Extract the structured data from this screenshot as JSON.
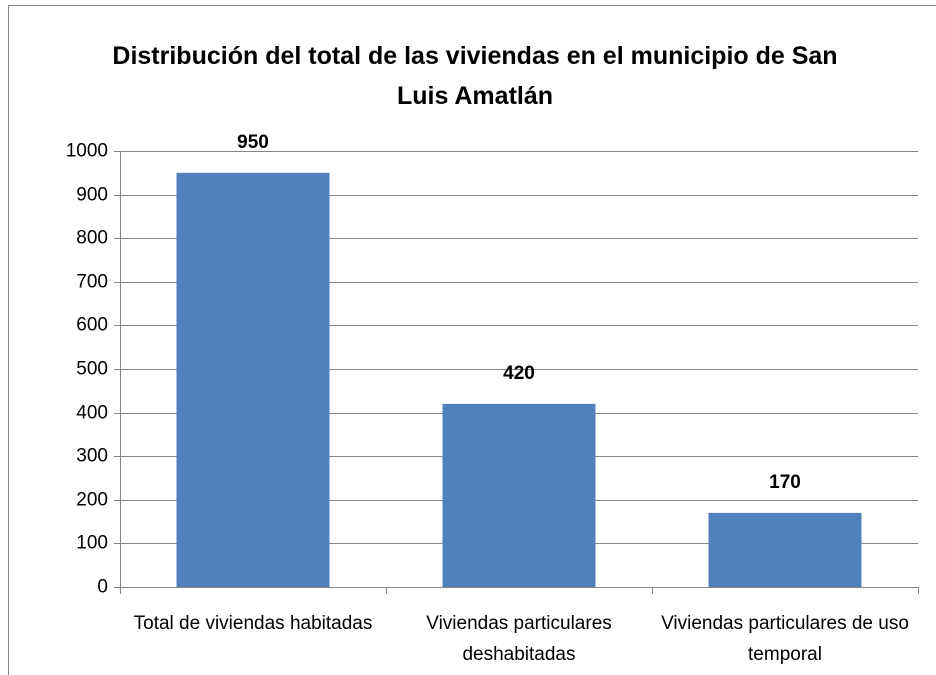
{
  "chart_data": {
    "type": "bar",
    "title": "Distribución del total de las viviendas en el municipio de San Luis Amatlán",
    "categories": [
      "Total de viviendas habitadas",
      "Viviendas particulares deshabitadas",
      "Viviendas particulares de uso temporal"
    ],
    "values": [
      950,
      420,
      170
    ],
    "color": "#4f81bd",
    "ylim": [
      0,
      1000
    ],
    "yticks": [
      0,
      100,
      200,
      300,
      400,
      500,
      600,
      700,
      800,
      900,
      1000
    ],
    "grid": true
  }
}
